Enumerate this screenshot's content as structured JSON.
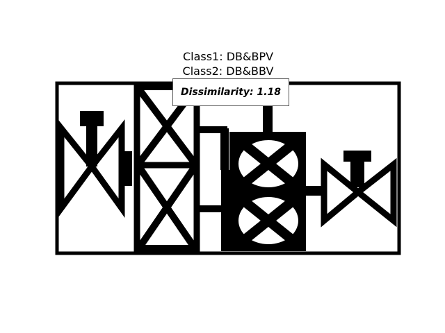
{
  "title": {
    "line1": "Class1: DB&BPV",
    "line2": "Class2: DB&BBV"
  },
  "score_label": "Dissimilarity: 1.18",
  "colors": {
    "foreground": "#000000",
    "background": "#ffffff"
  }
}
